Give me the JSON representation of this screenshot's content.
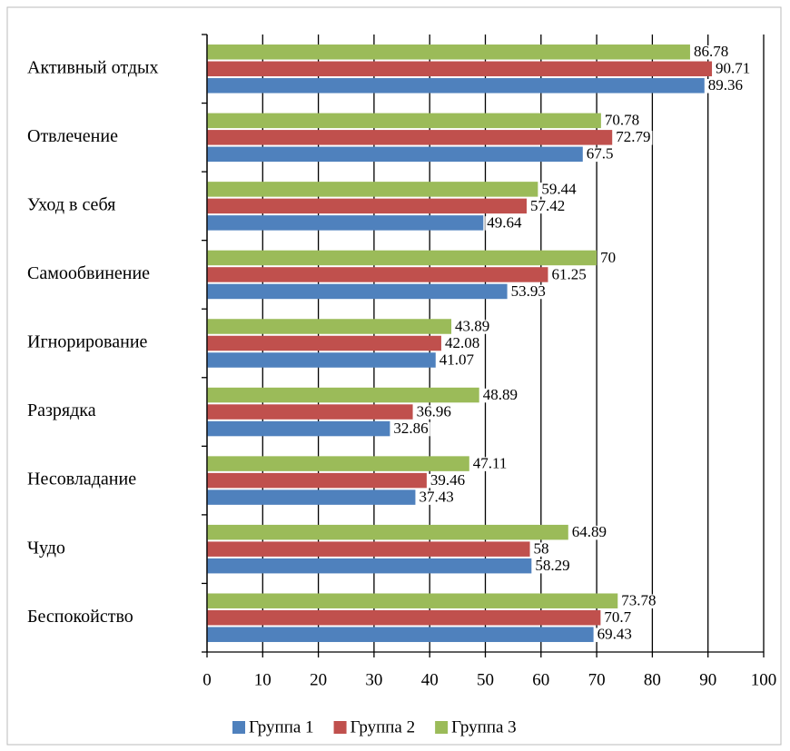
{
  "chart_data": {
    "type": "bar",
    "orientation": "horizontal",
    "categories": [
      "Активный отдых",
      "Отвлечение",
      "Уход в себя",
      "Самообвинение",
      "Игнорирование",
      "Разрядка",
      "Несовладание",
      "Чудо",
      "Беспокойство"
    ],
    "series": [
      {
        "name": "Группа 1",
        "color": "#4f81bd",
        "values": [
          89.36,
          67.5,
          49.64,
          53.93,
          41.07,
          32.86,
          37.43,
          58.29,
          69.43
        ]
      },
      {
        "name": "Группа 2",
        "color": "#c0504d",
        "values": [
          90.71,
          72.79,
          57.42,
          61.25,
          42.08,
          36.96,
          39.46,
          58,
          70.7
        ]
      },
      {
        "name": "Группа 3",
        "color": "#9bbb59",
        "values": [
          86.78,
          70.78,
          59.44,
          70,
          43.89,
          48.89,
          47.11,
          64.89,
          73.78
        ]
      }
    ],
    "xlim": [
      0,
      100
    ],
    "xticks": [
      0,
      10,
      20,
      30,
      40,
      50,
      60,
      70,
      80,
      90,
      100
    ],
    "grid": true,
    "legend": "bottom"
  }
}
